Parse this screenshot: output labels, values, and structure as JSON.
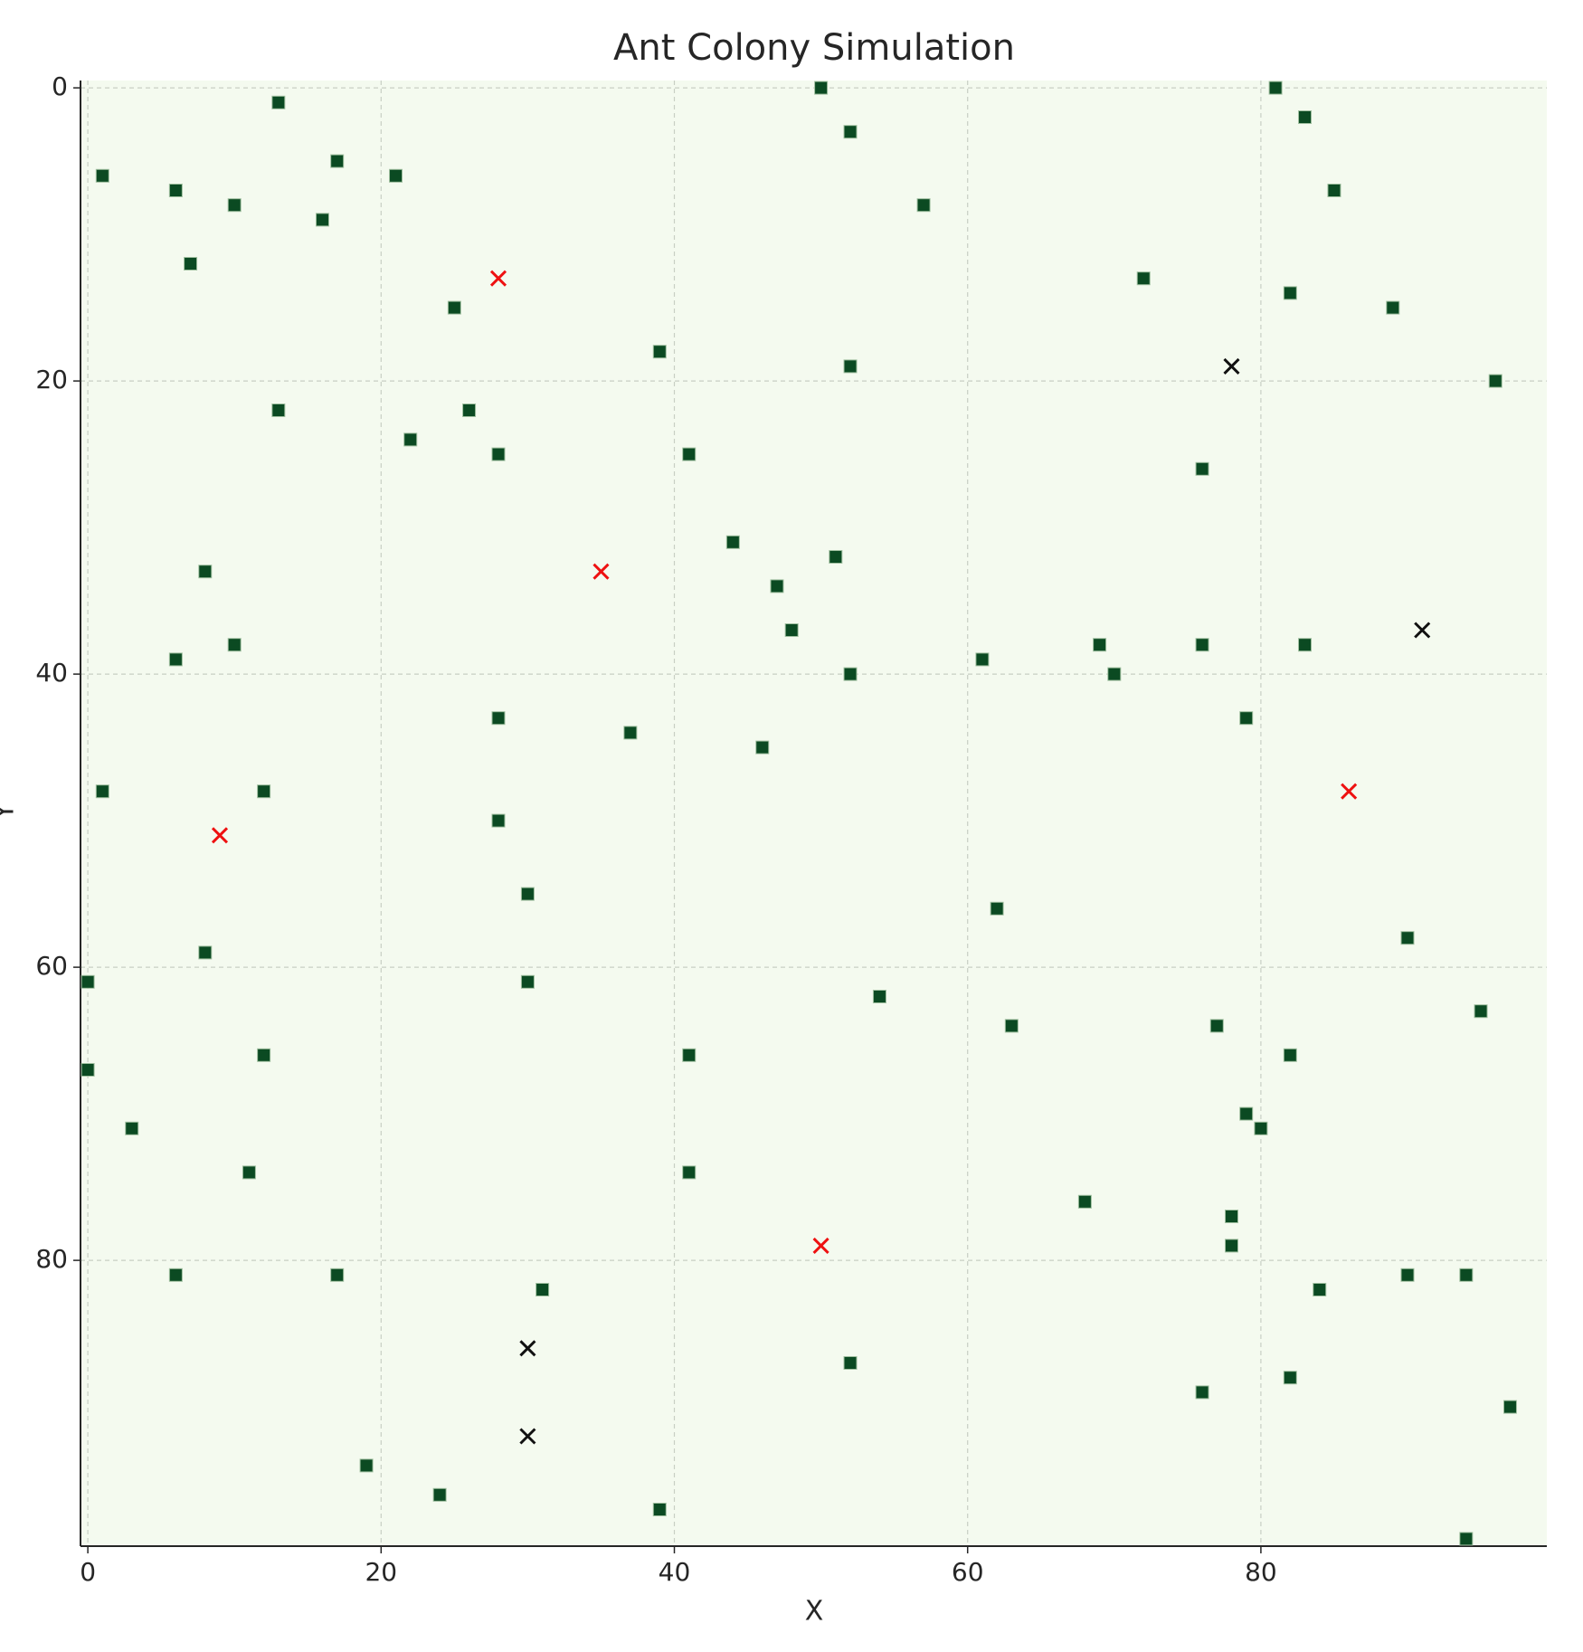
{
  "chart_data": {
    "type": "scatter",
    "title": "Ant Colony Simulation",
    "xlabel": "X",
    "ylabel": "Y",
    "xlim": [
      -0.5,
      99.5
    ],
    "ylim": [
      99.5,
      -0.5
    ],
    "y_inverted": true,
    "xticks": [
      0,
      20,
      40,
      60,
      80
    ],
    "yticks": [
      0,
      20,
      40,
      60,
      80
    ],
    "grid": true,
    "background": "#f4faef",
    "series": [
      {
        "color": "#0b4a22",
        "marker": "square",
        "x": [
          50,
          81,
          13,
          83,
          52,
          17,
          1,
          21,
          6,
          85,
          10,
          57,
          16,
          7,
          72,
          82,
          25,
          89,
          39,
          52,
          96,
          13,
          26,
          22,
          28,
          41,
          76,
          44,
          51,
          8,
          47,
          48,
          10,
          69,
          76,
          83,
          6,
          61,
          52,
          70,
          28,
          79,
          37,
          46,
          1,
          12,
          28,
          30,
          62,
          90,
          8,
          0,
          30,
          54,
          95,
          63,
          77,
          12,
          41,
          82,
          0,
          79,
          3,
          80,
          11,
          41,
          68,
          78,
          78,
          6,
          17,
          90,
          94,
          31,
          84,
          52,
          82,
          76,
          97,
          19,
          24,
          39,
          94
        ],
        "y": [
          0,
          0,
          1,
          2,
          3,
          5,
          6,
          6,
          7,
          7,
          8,
          8,
          9,
          12,
          13,
          14,
          15,
          15,
          18,
          19,
          20,
          22,
          22,
          24,
          25,
          25,
          26,
          31,
          32,
          33,
          34,
          37,
          38,
          38,
          38,
          38,
          39,
          39,
          40,
          40,
          43,
          43,
          44,
          45,
          48,
          48,
          50,
          55,
          56,
          58,
          59,
          61,
          61,
          62,
          63,
          64,
          64,
          66,
          66,
          66,
          67,
          70,
          71,
          71,
          74,
          74,
          76,
          77,
          79,
          81,
          81,
          81,
          81,
          82,
          82,
          87,
          88,
          89,
          90,
          94,
          96,
          97,
          99
        ]
      },
      {
        "color": "#ee1111",
        "marker": "x",
        "x": [
          28,
          35,
          9,
          86,
          50
        ],
        "y": [
          13,
          33,
          51,
          48,
          79
        ]
      },
      {
        "color": "#111111",
        "marker": "x",
        "x": [
          78,
          91,
          30,
          30
        ],
        "y": [
          19,
          37,
          86,
          92
        ]
      }
    ]
  }
}
